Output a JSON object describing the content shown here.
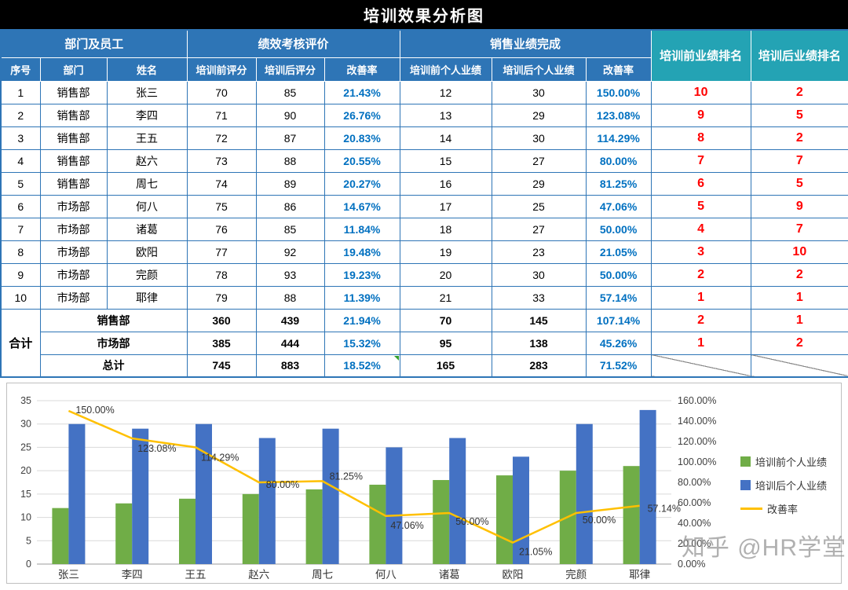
{
  "title": "培训效果分析图",
  "table": {
    "group_headers": {
      "dept_employee": "部门及员工",
      "performance": "绩效考核评价",
      "sales": "销售业绩完成",
      "rank_before": "培训前业绩排名",
      "rank_after": "培训后业绩排名"
    },
    "col_headers": [
      "序号",
      "部门",
      "姓名",
      "培训前评分",
      "培训后评分",
      "改善率",
      "培训前个人业绩",
      "培训后个人业绩",
      "改善率"
    ],
    "rows": [
      {
        "no": "1",
        "dept": "销售部",
        "name": "张三",
        "score_before": "70",
        "score_after": "85",
        "score_rate": "21.43%",
        "sales_before": "12",
        "sales_after": "30",
        "sales_rate": "150.00%",
        "rank_before": "10",
        "rank_after": "2"
      },
      {
        "no": "2",
        "dept": "销售部",
        "name": "李四",
        "score_before": "71",
        "score_after": "90",
        "score_rate": "26.76%",
        "sales_before": "13",
        "sales_after": "29",
        "sales_rate": "123.08%",
        "rank_before": "9",
        "rank_after": "5"
      },
      {
        "no": "3",
        "dept": "销售部",
        "name": "王五",
        "score_before": "72",
        "score_after": "87",
        "score_rate": "20.83%",
        "sales_before": "14",
        "sales_after": "30",
        "sales_rate": "114.29%",
        "rank_before": "8",
        "rank_after": "2"
      },
      {
        "no": "4",
        "dept": "销售部",
        "name": "赵六",
        "score_before": "73",
        "score_after": "88",
        "score_rate": "20.55%",
        "sales_before": "15",
        "sales_after": "27",
        "sales_rate": "80.00%",
        "rank_before": "7",
        "rank_after": "7"
      },
      {
        "no": "5",
        "dept": "销售部",
        "name": "周七",
        "score_before": "74",
        "score_after": "89",
        "score_rate": "20.27%",
        "sales_before": "16",
        "sales_after": "29",
        "sales_rate": "81.25%",
        "rank_before": "6",
        "rank_after": "5"
      },
      {
        "no": "6",
        "dept": "市场部",
        "name": "何八",
        "score_before": "75",
        "score_after": "86",
        "score_rate": "14.67%",
        "sales_before": "17",
        "sales_after": "25",
        "sales_rate": "47.06%",
        "rank_before": "5",
        "rank_after": "9"
      },
      {
        "no": "7",
        "dept": "市场部",
        "name": "诸葛",
        "score_before": "76",
        "score_after": "85",
        "score_rate": "11.84%",
        "sales_before": "18",
        "sales_after": "27",
        "sales_rate": "50.00%",
        "rank_before": "4",
        "rank_after": "7"
      },
      {
        "no": "8",
        "dept": "市场部",
        "name": "欧阳",
        "score_before": "77",
        "score_after": "92",
        "score_rate": "19.48%",
        "sales_before": "19",
        "sales_after": "23",
        "sales_rate": "21.05%",
        "rank_before": "3",
        "rank_after": "10"
      },
      {
        "no": "9",
        "dept": "市场部",
        "name": "完颜",
        "score_before": "78",
        "score_after": "93",
        "score_rate": "19.23%",
        "sales_before": "20",
        "sales_after": "30",
        "sales_rate": "50.00%",
        "rank_before": "2",
        "rank_after": "2"
      },
      {
        "no": "10",
        "dept": "市场部",
        "name": "耶律",
        "score_before": "79",
        "score_after": "88",
        "score_rate": "11.39%",
        "sales_before": "21",
        "sales_after": "33",
        "sales_rate": "57.14%",
        "rank_before": "1",
        "rank_after": "1"
      }
    ],
    "summary_label": "合计",
    "summary_rows": [
      {
        "label": "销售部",
        "score_before": "360",
        "score_after": "439",
        "score_rate": "21.94%",
        "sales_before": "70",
        "sales_after": "145",
        "sales_rate": "107.14%",
        "rank_before": "2",
        "rank_after": "1",
        "diagonal": false
      },
      {
        "label": "市场部",
        "score_before": "385",
        "score_after": "444",
        "score_rate": "15.32%",
        "sales_before": "95",
        "sales_after": "138",
        "sales_rate": "45.26%",
        "rank_before": "1",
        "rank_after": "2",
        "diagonal": false
      },
      {
        "label": "总计",
        "score_before": "745",
        "score_after": "883",
        "score_rate": "18.52%",
        "sales_before": "165",
        "sales_after": "283",
        "sales_rate": "71.52%",
        "rank_before": "",
        "rank_after": "",
        "diagonal": true
      }
    ]
  },
  "chart_data": {
    "type": "bar",
    "subtype": "grouped-bars-with-line",
    "categories": [
      "张三",
      "李四",
      "王五",
      "赵六",
      "周七",
      "何八",
      "诸葛",
      "欧阳",
      "完颜",
      "耶律"
    ],
    "series": [
      {
        "name": "培训前个人业绩",
        "type": "bar",
        "color": "#70AD47",
        "values": [
          12,
          13,
          14,
          15,
          16,
          17,
          18,
          19,
          20,
          21
        ]
      },
      {
        "name": "培训后个人业绩",
        "type": "bar",
        "color": "#4472C4",
        "values": [
          30,
          29,
          30,
          27,
          29,
          25,
          27,
          23,
          30,
          33
        ]
      },
      {
        "name": "改善率",
        "type": "line",
        "axis": "right",
        "color": "#FFC000",
        "values": [
          1.5,
          1.2308,
          1.1429,
          0.8,
          0.8125,
          0.4706,
          0.5,
          0.2105,
          0.5,
          0.5714
        ],
        "labels": [
          "150.00%",
          "123.08%",
          "114.29%",
          "80.00%",
          "81.25%",
          "47.06%",
          "50.00%",
          "21.05%",
          "50.00%",
          "57.14%"
        ]
      }
    ],
    "left_axis": {
      "min": 0,
      "max": 35,
      "step": 5,
      "ticks": [
        "0",
        "5",
        "10",
        "15",
        "20",
        "25",
        "30",
        "35"
      ]
    },
    "right_axis": {
      "min": 0,
      "max": 1.6,
      "step": 0.2,
      "ticks": [
        "0.00%",
        "20.00%",
        "40.00%",
        "60.00%",
        "80.00%",
        "100.00%",
        "120.00%",
        "140.00%",
        "160.00%"
      ]
    },
    "grid": true,
    "legend_position": "right"
  },
  "watermark": "知乎 @HR学堂",
  "colors": {
    "header_blue": "#2E75B6",
    "header_teal": "#24A3B4",
    "rate_blue": "#0070C0",
    "rank_red": "#FF0000",
    "bar_green": "#70AD47",
    "bar_blue": "#4472C4",
    "line_yellow": "#FFC000",
    "gridline": "#D9D9D9"
  }
}
